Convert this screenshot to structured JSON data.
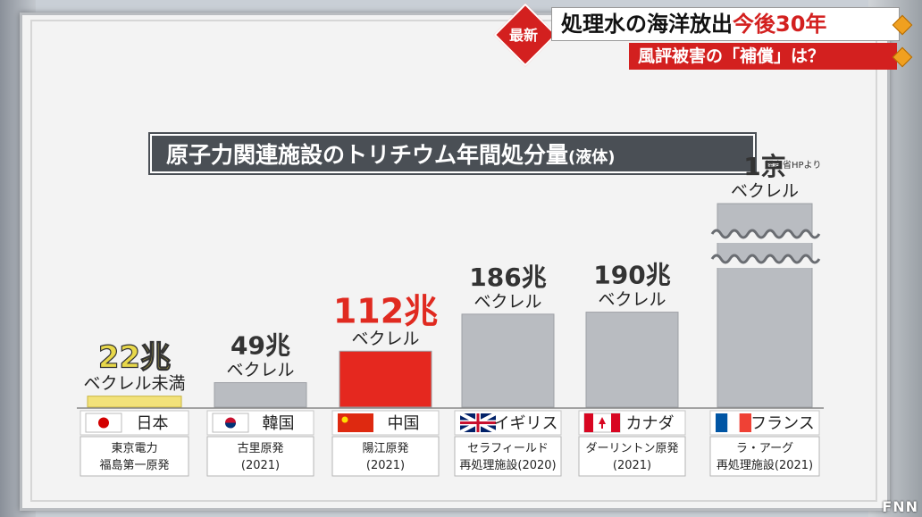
{
  "banner": {
    "badge": "最新",
    "headline_part1": "処理水の海洋放出",
    "headline_part2": "今後30年",
    "subline": "風評被害の「補償」は？"
  },
  "source_note": "経産省HPより",
  "logo": "FNN",
  "colors": {
    "highlight_bar": "#f2e27a",
    "china_bar": "#e5281f",
    "gray_bar": "#b9bcc1",
    "value_red": "#e02a20"
  },
  "chart_data": {
    "type": "bar",
    "title": "原子力関連施設のトリチウム年間処分量",
    "title_suffix": "(液体)",
    "unit": "ベクレル",
    "categories": [
      "日本",
      "韓国",
      "中国",
      "イギリス",
      "カナダ",
      "フランス"
    ],
    "facilities": [
      "東京電力福島第一原発",
      "古里原発(2021)",
      "陽江原発(2021)",
      "セラフィールド再処理施設(2020)",
      "ダーリントン原発(2021)",
      "ラ・アーグ再処理施設(2021)"
    ],
    "facility_lines": [
      [
        "東京電力",
        "福島第一原発"
      ],
      [
        "古里原発",
        "(2021)"
      ],
      [
        "陽江原発",
        "(2021)"
      ],
      [
        "セラフィールド",
        "再処理施設(2020)"
      ],
      [
        "ダーリントン原発",
        "(2021)"
      ],
      [
        "ラ・アーグ",
        "再処理施設(2021)"
      ]
    ],
    "value_labels": [
      "22兆",
      "49兆",
      "112兆",
      "186兆",
      "190兆",
      "1京"
    ],
    "value_sublabels": [
      "ベクレル未満",
      "ベクレル",
      "ベクレル",
      "ベクレル",
      "ベクレル",
      "ベクレル"
    ],
    "values_trillion_bq": [
      22,
      49,
      112,
      186,
      190,
      10000
    ],
    "axis_break_above": 190
  }
}
